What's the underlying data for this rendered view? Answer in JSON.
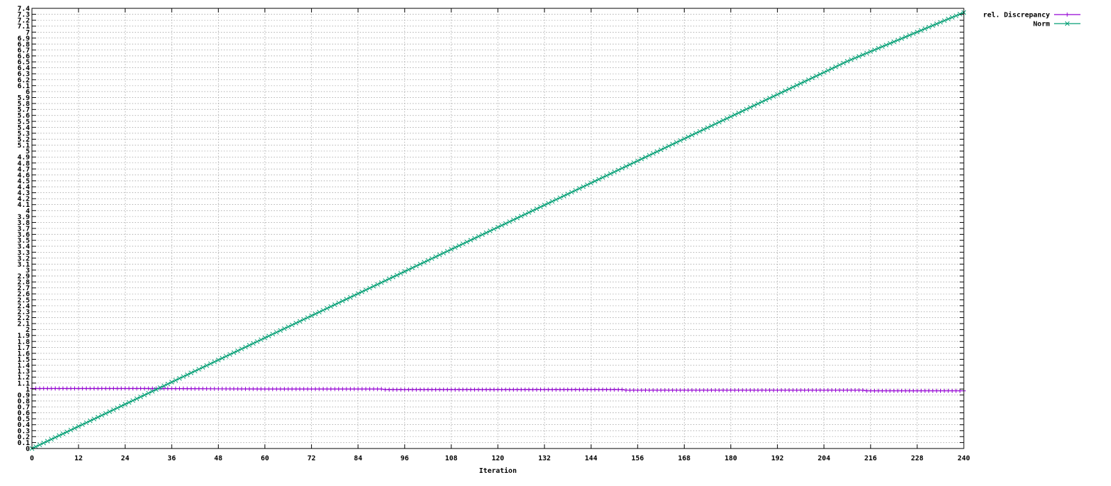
{
  "chart_data": {
    "type": "line",
    "title": "",
    "xlabel": "Iteration",
    "ylabel": "",
    "xlim": [
      0,
      240
    ],
    "ylim": [
      0,
      7.4
    ],
    "x_tick_step": 12,
    "y_tick_step": 0.1,
    "grid": true,
    "legend_position": "top-right, outside plot",
    "series": [
      {
        "name": "rel. Discrepancy",
        "color": "#9400d3",
        "marker": "plus",
        "x": [
          0,
          30,
          60,
          90,
          91,
          120,
          152,
          153,
          180,
          214,
          215,
          240
        ],
        "y": [
          1.01,
          1.01,
          1.0,
          1.0,
          0.99,
          0.99,
          0.99,
          0.98,
          0.98,
          0.98,
          0.97,
          0.97
        ]
      },
      {
        "name": "Norm",
        "color": "#009e73",
        "marker": "cross",
        "x": [
          0,
          30,
          60,
          90,
          120,
          150,
          180,
          210,
          240
        ],
        "y": [
          0.0,
          0.93,
          1.86,
          2.79,
          3.72,
          4.65,
          5.58,
          6.51,
          7.33
        ]
      }
    ]
  }
}
